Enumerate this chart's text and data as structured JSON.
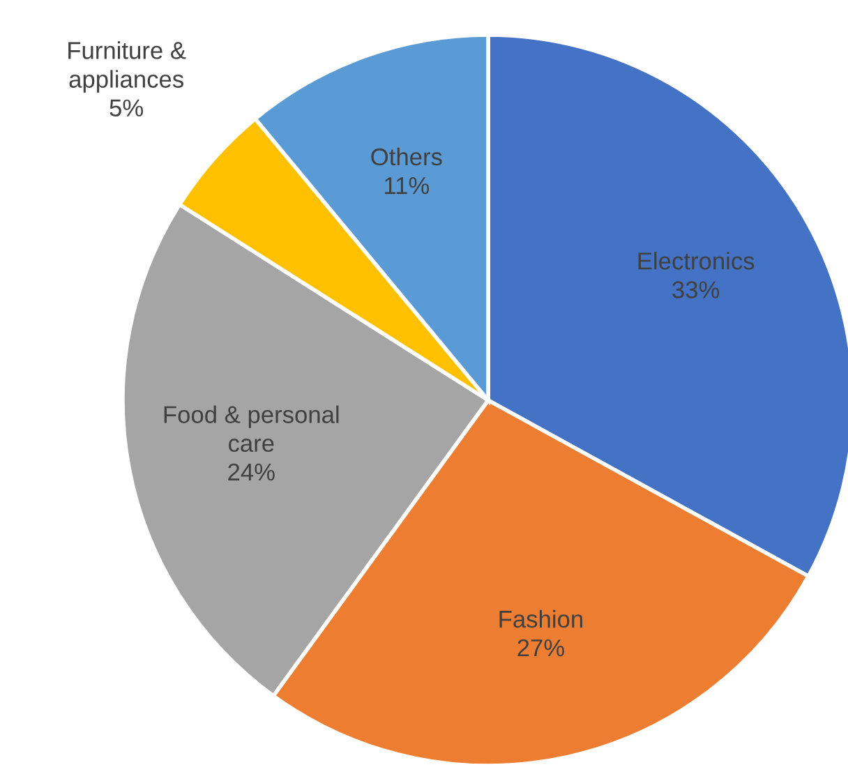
{
  "chart_data": {
    "type": "pie",
    "categories": [
      "Electronics",
      "Fashion",
      "Food & personal\ncare",
      "Furniture &\nappliances",
      "Others"
    ],
    "values": [
      33,
      27,
      24,
      5,
      11
    ],
    "value_labels": [
      "33%",
      "27%",
      "24%",
      "5%",
      "11%"
    ],
    "colors": [
      "#4472c4",
      "#ed7d31",
      "#a5a5a5",
      "#ffc000",
      "#5b9bd5"
    ],
    "legend": false
  }
}
